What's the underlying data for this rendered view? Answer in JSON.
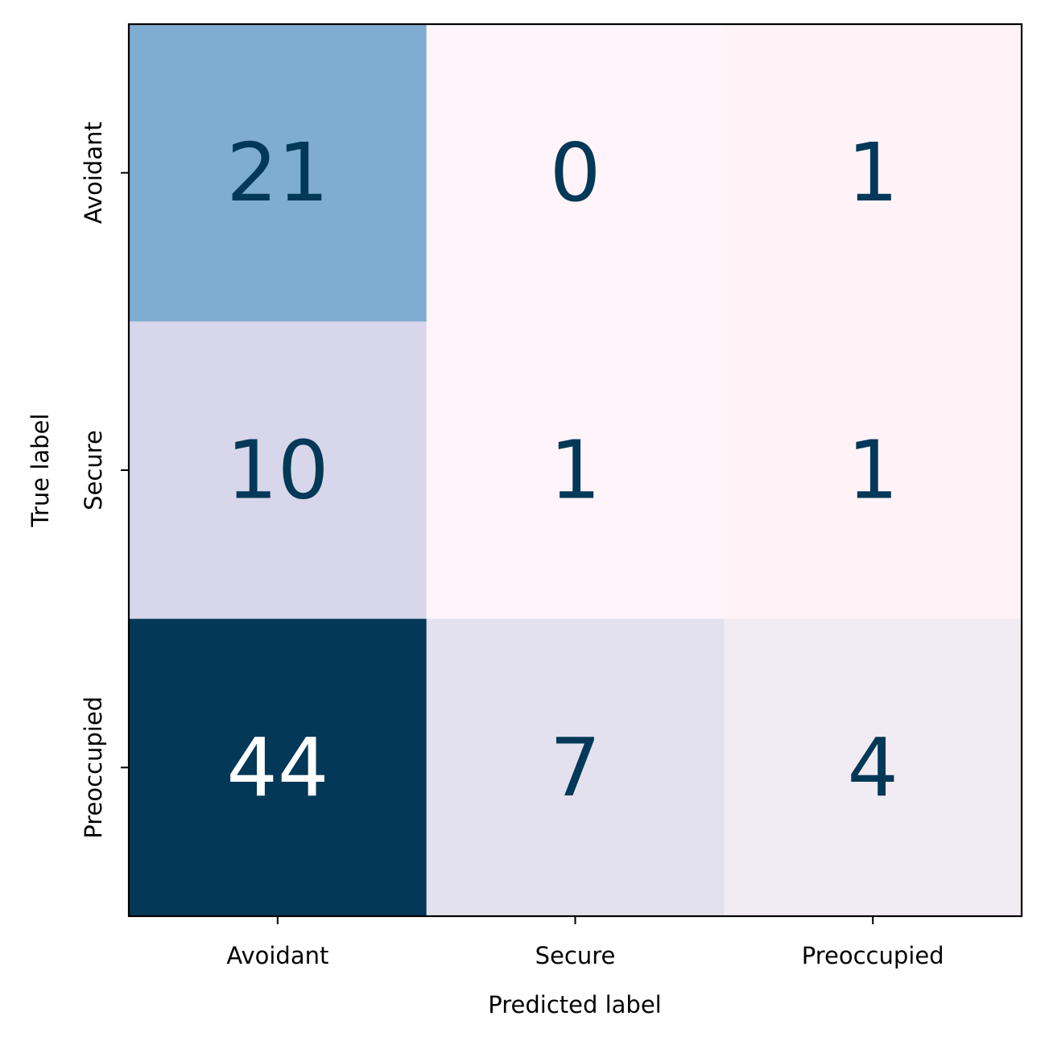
{
  "chart_data": {
    "type": "heatmap",
    "title": "",
    "xlabel": "Predicted label",
    "ylabel": "True label",
    "x_categories": [
      "Avoidant",
      "Secure",
      "Preoccupied"
    ],
    "y_categories": [
      "Avoidant",
      "Secure",
      "Preoccupied"
    ],
    "values": [
      [
        21,
        0,
        1
      ],
      [
        10,
        1,
        1
      ],
      [
        44,
        7,
        4
      ]
    ],
    "colormap": "PuBu",
    "cell_colors": [
      [
        "#7facd1",
        "#fff4f9",
        "#fff3f8"
      ],
      [
        "#d7d6ea",
        "#fff4f9",
        "#fff3f8"
      ],
      [
        "#033858",
        "#e3e1ee",
        "#f1ebf3"
      ]
    ],
    "text_colors": {
      "dark": "#023858",
      "light": "#ffffff"
    },
    "grid": false,
    "colorbar": false
  }
}
